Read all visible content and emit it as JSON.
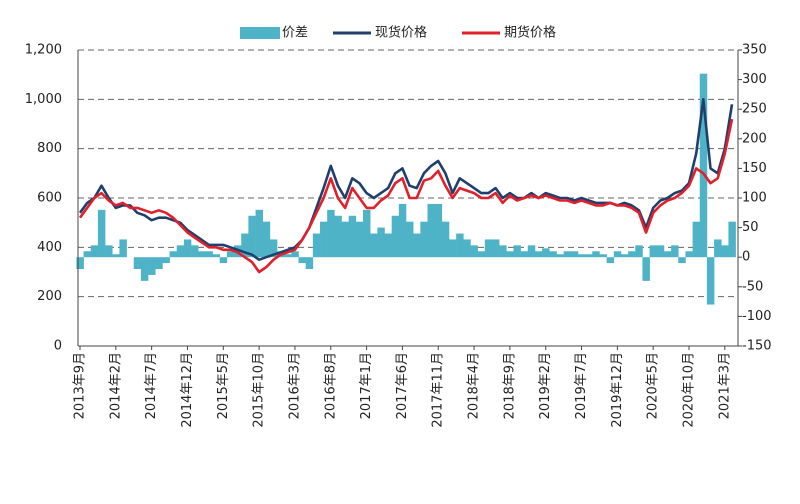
{
  "chart_data": {
    "type": "bar-line-dual",
    "categories": [
      "2013年9月",
      null,
      null,
      null,
      null,
      "2014年2月",
      null,
      null,
      null,
      null,
      "2014年7月",
      null,
      null,
      null,
      null,
      "2014年12月",
      null,
      null,
      null,
      null,
      "2015年5月",
      null,
      null,
      null,
      null,
      "2015年10月",
      null,
      null,
      null,
      null,
      "2016年3月",
      null,
      null,
      null,
      null,
      "2016年8月",
      null,
      null,
      null,
      null,
      "2017年1月",
      null,
      null,
      null,
      null,
      "2017年6月",
      null,
      null,
      null,
      null,
      "2017年11月",
      null,
      null,
      null,
      null,
      "2018年4月",
      null,
      null,
      null,
      null,
      "2018年9月",
      null,
      null,
      null,
      null,
      "2019年2月",
      null,
      null,
      null,
      null,
      "2019年7月",
      null,
      null,
      null,
      null,
      "2019年12月",
      null,
      null,
      null,
      null,
      "2020年5月",
      null,
      null,
      null,
      null,
      "2020年10月",
      null,
      null,
      null,
      null,
      "2021年3月",
      null
    ],
    "series": [
      {
        "name": "价差",
        "color": "#4fb3c8",
        "kind": "bar",
        "axis": "y2",
        "values": [
          -20,
          10,
          20,
          80,
          20,
          5,
          30,
          0,
          -20,
          -40,
          -30,
          -20,
          -10,
          10,
          20,
          30,
          20,
          10,
          10,
          5,
          -10,
          10,
          20,
          40,
          70,
          80,
          60,
          30,
          10,
          5,
          10,
          -10,
          -20,
          40,
          60,
          80,
          70,
          60,
          70,
          60,
          80,
          40,
          50,
          40,
          70,
          90,
          60,
          40,
          60,
          90,
          90,
          60,
          30,
          40,
          30,
          20,
          10,
          30,
          30,
          20,
          10,
          20,
          10,
          20,
          10,
          15,
          10,
          5,
          10,
          10,
          5,
          5,
          10,
          5,
          -10,
          10,
          5,
          10,
          20,
          -40,
          20,
          20,
          10,
          20,
          -10,
          10,
          60,
          310,
          -80,
          30,
          20,
          60
        ]
      },
      {
        "name": "现货价格",
        "color": "#1f3f6e",
        "kind": "line",
        "values": [
          540,
          580,
          600,
          650,
          600,
          560,
          570,
          570,
          540,
          530,
          510,
          520,
          520,
          510,
          500,
          470,
          450,
          430,
          410,
          410,
          410,
          400,
          390,
          380,
          370,
          350,
          360,
          370,
          380,
          390,
          400,
          430,
          480,
          560,
          640,
          730,
          650,
          600,
          680,
          660,
          620,
          600,
          620,
          640,
          700,
          720,
          650,
          640,
          700,
          730,
          750,
          700,
          620,
          680,
          660,
          640,
          620,
          620,
          640,
          600,
          620,
          600,
          600,
          620,
          600,
          620,
          610,
          600,
          600,
          590,
          600,
          590,
          580,
          580,
          580,
          570,
          580,
          570,
          550,
          480,
          560,
          590,
          600,
          620,
          630,
          660,
          780,
          1000,
          720,
          700,
          800,
          980
        ]
      },
      {
        "name": "期货价格",
        "color": "#e0202a",
        "kind": "line",
        "values": [
          520,
          560,
          600,
          620,
          590,
          570,
          580,
          560,
          560,
          550,
          540,
          550,
          540,
          520,
          490,
          460,
          440,
          420,
          400,
          400,
          390,
          390,
          380,
          360,
          340,
          300,
          320,
          350,
          370,
          380,
          390,
          430,
          480,
          540,
          600,
          680,
          600,
          560,
          640,
          600,
          560,
          560,
          590,
          610,
          660,
          680,
          600,
          600,
          670,
          680,
          710,
          650,
          600,
          640,
          630,
          620,
          600,
          600,
          620,
          580,
          610,
          590,
          600,
          610,
          600,
          610,
          600,
          590,
          590,
          580,
          590,
          580,
          570,
          570,
          580,
          570,
          570,
          560,
          540,
          460,
          540,
          570,
          590,
          600,
          620,
          650,
          720,
          700,
          660,
          680,
          780,
          920
        ]
      }
    ],
    "ylim": [
      0,
      1200
    ],
    "yticks": [
      0,
      200,
      400,
      600,
      800,
      {
        "value": 1000,
        "label": "1,000"
      },
      {
        "value": 1200,
        "label": "1,200"
      }
    ],
    "y2lim": [
      -150,
      350
    ],
    "y2ticks": [
      -150,
      -100,
      -50,
      0,
      50,
      100,
      150,
      200,
      250,
      300,
      350
    ],
    "grid": true
  }
}
